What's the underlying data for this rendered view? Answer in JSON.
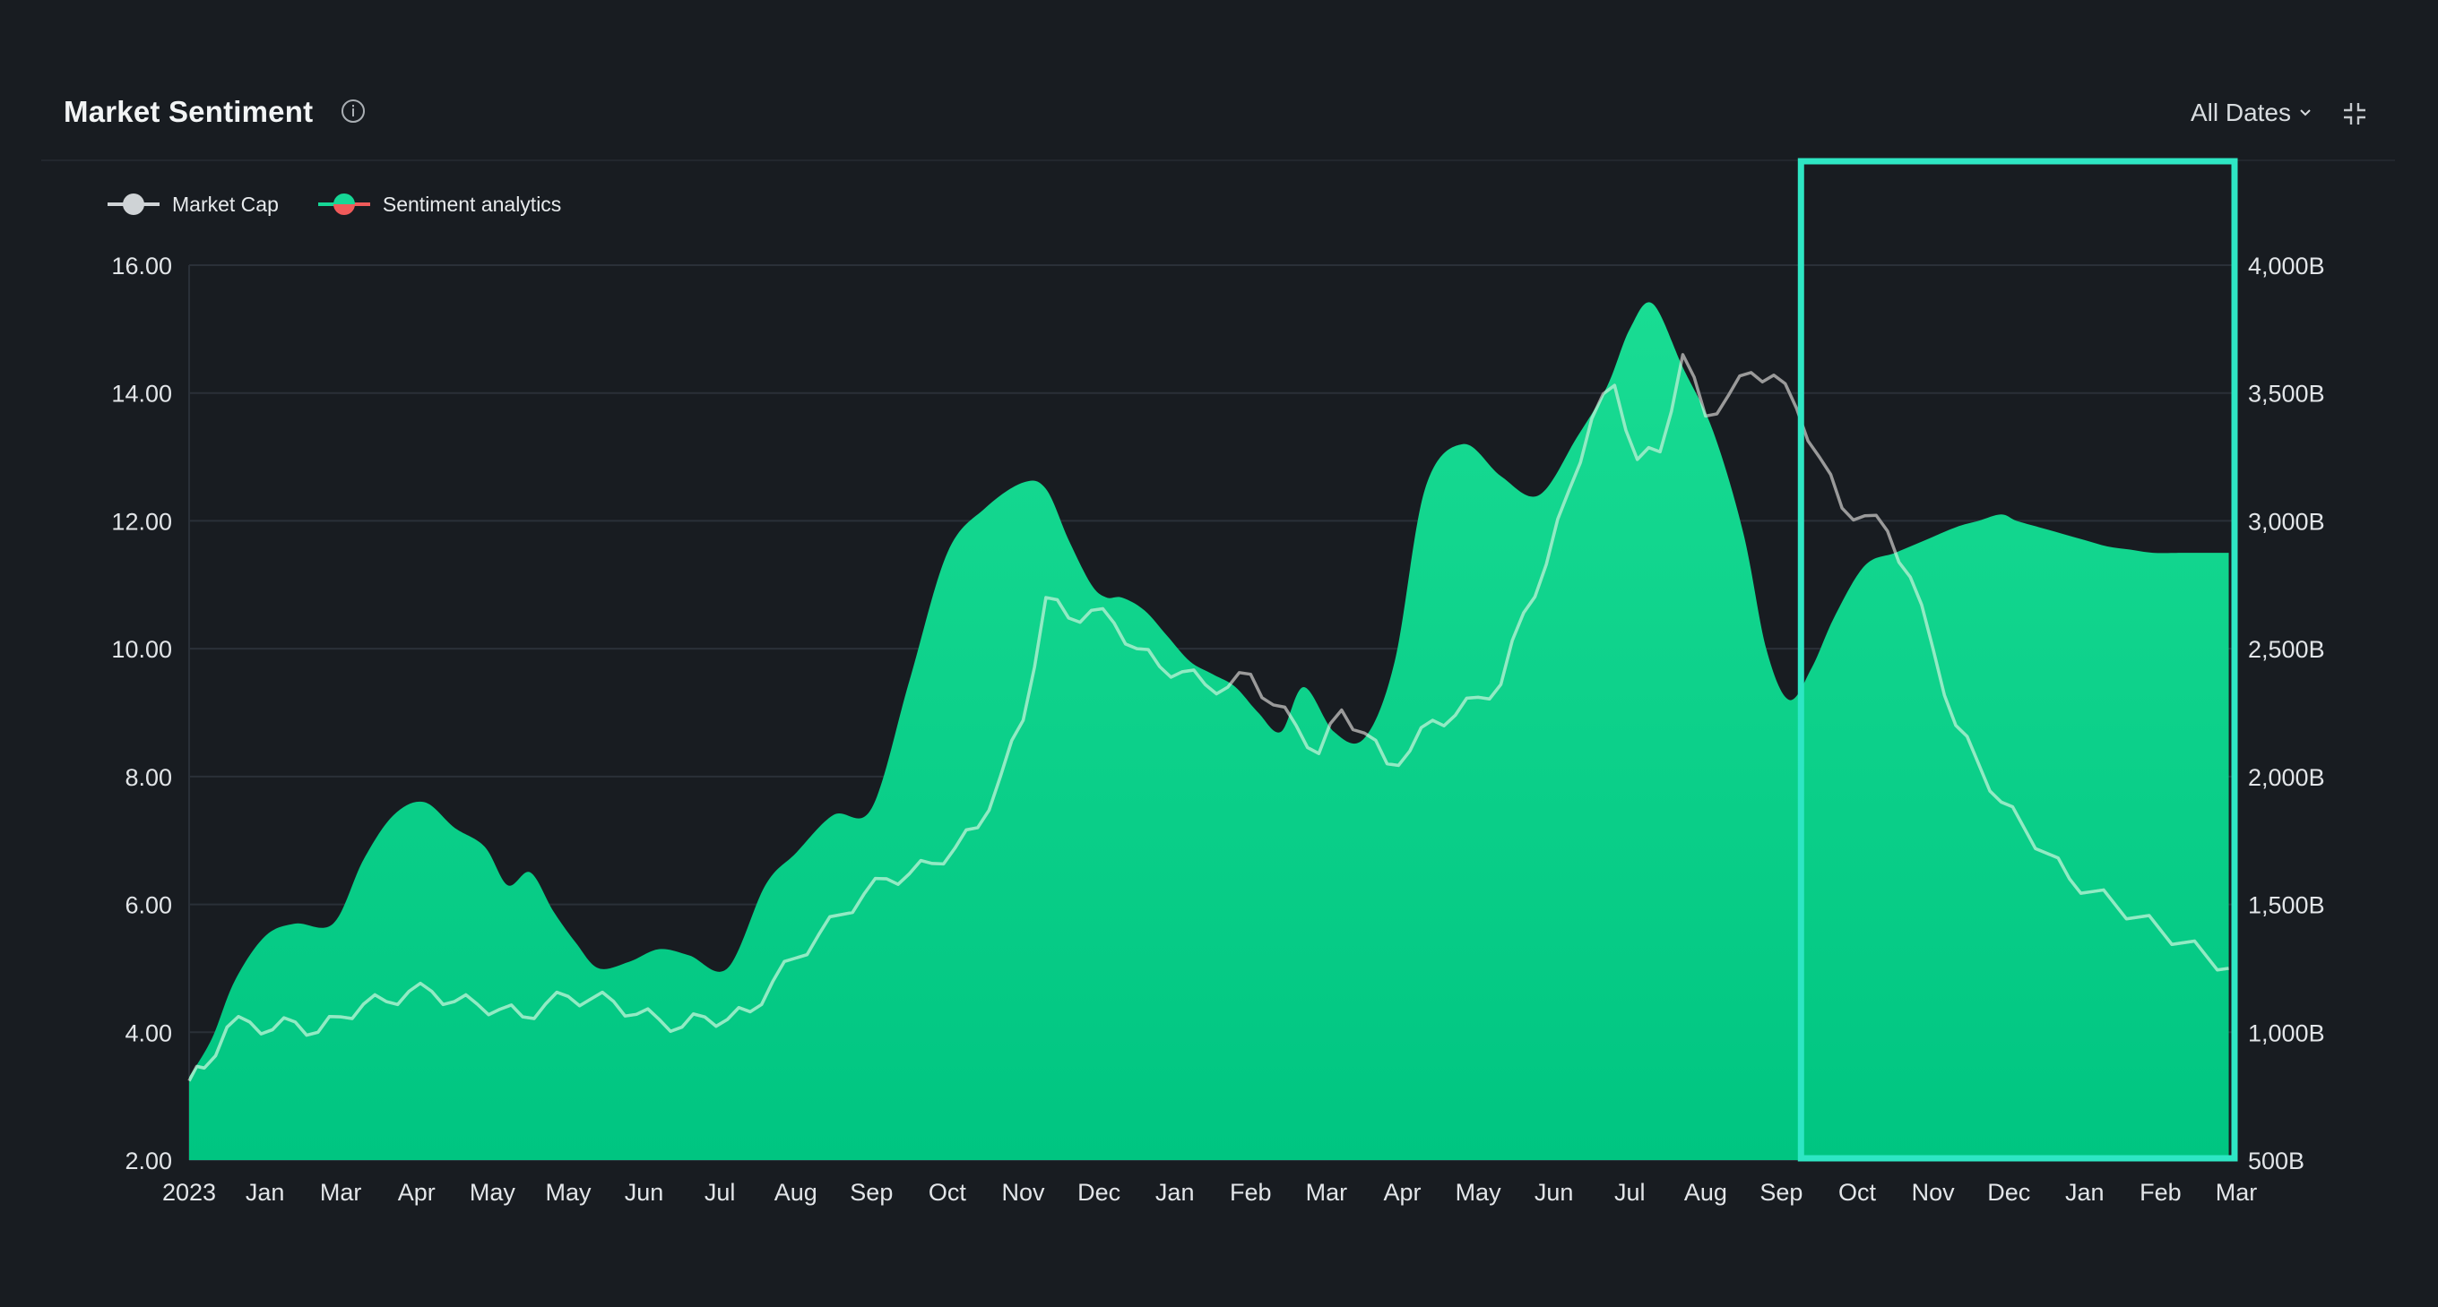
{
  "header": {
    "title": "Market Sentiment",
    "date_filter": "All Dates"
  },
  "legend": [
    {
      "label": "Market Cap",
      "color": "#cfd3d6"
    },
    {
      "label": "Sentiment analytics",
      "color_up": "#16d796",
      "color_down": "#f05a5a"
    }
  ],
  "colors": {
    "background": "#181c21",
    "area": "#12d08a",
    "market_cap_line_inside": "#8ff0c6",
    "market_cap_line_outside": "#9a9a9a",
    "highlight": "#2ee6c4"
  },
  "chart_data": {
    "type": "area",
    "x_tick_labels": [
      "2023",
      "Jan",
      "Mar",
      "Apr",
      "May",
      "May",
      "Jun",
      "Jul",
      "Aug",
      "Sep",
      "Oct",
      "Nov",
      "Dec",
      "Jan",
      "Feb",
      "Mar",
      "Apr",
      "May",
      "Jun",
      "Jul",
      "Aug",
      "Sep",
      "Oct",
      "Nov",
      "Dec",
      "Jan",
      "Feb",
      "Mar"
    ],
    "y_left": {
      "ticks": [
        "16.00",
        "14.00",
        "12.00",
        "10.00",
        "8.00",
        "6.00",
        "4.00",
        "2.00"
      ],
      "range": [
        2,
        16
      ]
    },
    "y_right": {
      "ticks": [
        "4,000B",
        "3,500B",
        "3,000B",
        "2,500B",
        "2,000B",
        "1,500B",
        "1,000B",
        "500B"
      ],
      "range": [
        500,
        4000
      ]
    },
    "series": [
      {
        "name": "Sentiment analytics",
        "axis": "left",
        "x": [
          0,
          0.3,
          0.6,
          1,
          1.4,
          1.9,
          2.3,
          2.7,
          3.1,
          3.5,
          3.9,
          4.2,
          4.5,
          4.8,
          5.1,
          5.4,
          5.8,
          6.2,
          6.6,
          7.1,
          7.6,
          8,
          8.5,
          9,
          9.5,
          10,
          10.5,
          11,
          11.3,
          11.6,
          11.9,
          12.1,
          12.3,
          12.6,
          12.9,
          13.2,
          13.5,
          13.8,
          14.1,
          14.4,
          14.7,
          15.1,
          15.5,
          15.9,
          16.3,
          16.8,
          17.3,
          17.8,
          18.3,
          18.7,
          19,
          19.3,
          19.7,
          20.1,
          20.5,
          20.8,
          21.1,
          21.4,
          21.7,
          22.1,
          22.5,
          22.9,
          23.3,
          23.6,
          23.9,
          24.1,
          24.4,
          24.7,
          25,
          25.3,
          25.6,
          25.9,
          26.3,
          26.6,
          26.9
        ],
        "values": [
          3.3,
          3.9,
          4.8,
          5.5,
          5.7,
          5.7,
          6.7,
          7.4,
          7.6,
          7.2,
          6.9,
          6.3,
          6.5,
          5.9,
          5.4,
          5.0,
          5.1,
          5.3,
          5.2,
          5.0,
          6.3,
          6.8,
          7.4,
          7.5,
          9.5,
          11.5,
          12.2,
          12.6,
          12.5,
          11.7,
          11.0,
          10.8,
          10.8,
          10.6,
          10.2,
          9.8,
          9.6,
          9.4,
          9.0,
          8.7,
          9.4,
          8.7,
          8.6,
          9.8,
          12.5,
          13.2,
          12.7,
          12.4,
          13.3,
          14.1,
          15.0,
          15.4,
          14.4,
          13.4,
          11.8,
          10.0,
          9.2,
          9.7,
          10.5,
          11.3,
          11.5,
          11.7,
          11.9,
          12.0,
          12.1,
          12.0,
          11.9,
          11.8,
          11.7,
          11.6,
          11.55,
          11.5,
          11.5,
          11.5,
          11.5
        ]
      },
      {
        "name": "Market Cap",
        "axis": "right",
        "x": [
          0,
          0.2,
          0.5,
          0.8,
          1.1,
          1.4,
          1.7,
          2,
          2.3,
          2.6,
          2.9,
          3.2,
          3.5,
          3.8,
          4.1,
          4.4,
          4.7,
          5,
          5.3,
          5.6,
          5.9,
          6.2,
          6.5,
          6.8,
          7.1,
          7.4,
          7.7,
          8,
          8.3,
          8.6,
          8.9,
          9.2,
          9.5,
          9.8,
          10.1,
          10.4,
          10.7,
          11,
          11.3,
          11.6,
          11.9,
          12.2,
          12.5,
          12.8,
          13.1,
          13.4,
          13.7,
          14,
          14.3,
          14.6,
          14.9,
          15.2,
          15.5,
          15.8,
          16.1,
          16.4,
          16.7,
          17,
          17.3,
          17.6,
          17.9,
          18.2,
          18.5,
          18.8,
          19.1,
          19.4,
          19.7,
          20,
          20.3,
          20.6,
          20.9,
          21.2,
          21.5,
          21.8,
          22.1,
          22.4,
          22.7,
          23,
          23.3,
          23.6,
          23.9,
          24.2,
          24.5,
          24.8,
          25.1,
          25.4,
          25.7,
          26,
          26.3,
          26.6,
          26.9
        ],
        "values": [
          810,
          860,
          1020,
          1040,
          1010,
          1040,
          1000,
          1060,
          1110,
          1120,
          1160,
          1160,
          1120,
          1110,
          1090,
          1060,
          1110,
          1140,
          1130,
          1120,
          1070,
          1050,
          1020,
          1060,
          1050,
          1080,
          1200,
          1290,
          1380,
          1460,
          1540,
          1600,
          1620,
          1660,
          1720,
          1800,
          2000,
          2220,
          2700,
          2620,
          2650,
          2600,
          2500,
          2430,
          2410,
          2360,
          2350,
          2400,
          2280,
          2200,
          2090,
          2260,
          2170,
          2050,
          2100,
          2220,
          2240,
          2310,
          2360,
          2640,
          2830,
          3120,
          3400,
          3530,
          3240,
          3270,
          3650,
          3410,
          3490,
          3580,
          3570,
          3440,
          3250,
          3050,
          3020,
          2960,
          2780,
          2500,
          2200,
          2050,
          1900,
          1800,
          1700,
          1600,
          1550,
          1500,
          1450,
          1400,
          1350,
          1300,
          1250
        ],
        "inside_highlight_color": "#8ff0c6",
        "outside_color": "#9a9a9a"
      }
    ],
    "highlight_region": {
      "x_start_label": "Sep",
      "x_end_label": "Mar",
      "x_start": 21.4,
      "x_end": 27.2
    },
    "legend_position": "top-left",
    "grid": true
  }
}
